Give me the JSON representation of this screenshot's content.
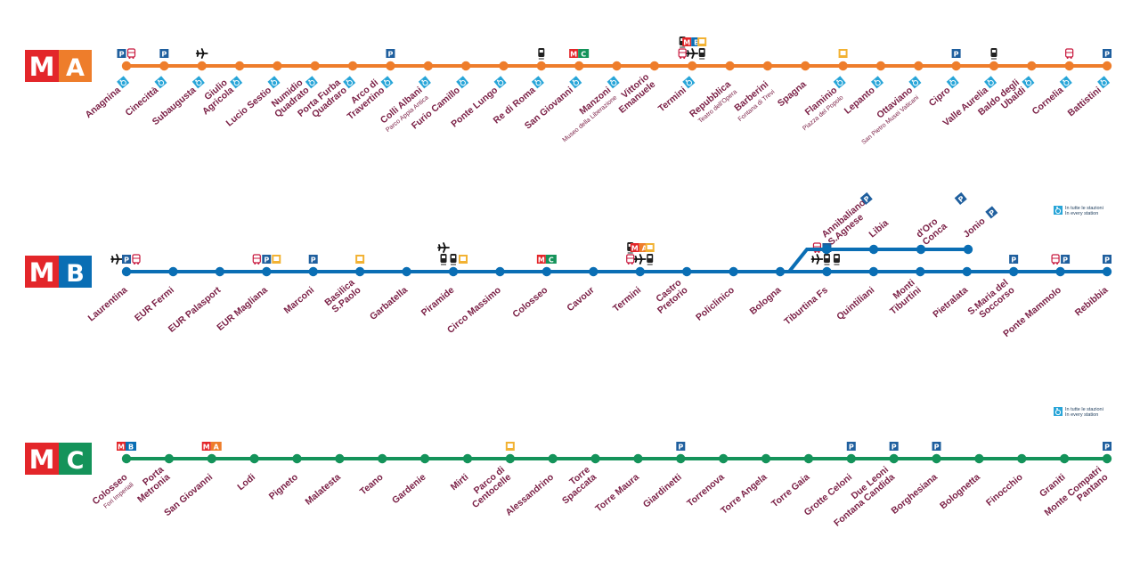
{
  "colors": {
    "line_a": "#ee7d2b",
    "line_b": "#0a6eb4",
    "line_c": "#14935a",
    "logo_m": "#e3262a",
    "station_text": "#7a1f45",
    "parking": "#1f5f9e",
    "access": "#28a5d8"
  },
  "accessibility_note": {
    "it": "In tutte le stazioni",
    "en": "In every station"
  },
  "lines": [
    {
      "id": "a",
      "logo_m": "M",
      "logo_letter": "A",
      "stations": [
        {
          "name": "Anagnina",
          "icons": [
            "parking-icon",
            "bus-icon"
          ],
          "access": true
        },
        {
          "name": "Cinecittà",
          "icons": [
            "parking-icon"
          ],
          "access": true
        },
        {
          "name": "Subaugusta",
          "icons": [
            "plane-icon"
          ],
          "access": true
        },
        {
          "name": "Giulio Agricola",
          "icons": [],
          "access": true
        },
        {
          "name": "Lucio Sestio",
          "icons": [],
          "access": true
        },
        {
          "name": "Numidio Quadrato",
          "icons": [],
          "access": true
        },
        {
          "name": "Porta Furba Quadraro",
          "icons": [],
          "access": true
        },
        {
          "name": "Arco di Travertino",
          "icons": [
            "parking-icon"
          ],
          "access": true
        },
        {
          "name": "Colli Albani",
          "sub": "Parco Appia Antica",
          "icons": [],
          "access": true
        },
        {
          "name": "Furio Camillo",
          "icons": [],
          "access": true
        },
        {
          "name": "Ponte Lungo",
          "icons": [],
          "access": true
        },
        {
          "name": "Re di Roma",
          "icons": [
            "train-icon"
          ],
          "access": true
        },
        {
          "name": "San Giovanni",
          "icons": [
            "line-c-badge"
          ],
          "access": true
        },
        {
          "name": "Manzoni",
          "sub": "Museo della Liberazione",
          "icons": [],
          "access": true
        },
        {
          "name": "Vittorio Emanuele",
          "icons": [],
          "access": false
        },
        {
          "name": "Termini",
          "icons": [
            "bus-icon",
            "plane-icon",
            "train-icon",
            "train-icon",
            "line-b-badge",
            "tram-icon"
          ],
          "access": true
        },
        {
          "name": "Repubblica",
          "sub": "Teatro dell'Opera",
          "icons": [],
          "access": false
        },
        {
          "name": "Barberini",
          "sub": "Fontana di Trevi",
          "icons": [],
          "access": false
        },
        {
          "name": "Spagna",
          "icons": [],
          "access": false
        },
        {
          "name": "Flaminio",
          "sub": "Piazza del Popolo",
          "icons": [
            "tram-icon"
          ],
          "access": true
        },
        {
          "name": "Lepanto",
          "icons": [],
          "access": true
        },
        {
          "name": "Ottaviano",
          "sub": "San Pietro Musei Vaticani",
          "icons": [],
          "access": true
        },
        {
          "name": "Cipro",
          "icons": [
            "parking-icon"
          ],
          "access": true
        },
        {
          "name": "Valle Aurelia",
          "icons": [
            "train-icon"
          ],
          "access": true
        },
        {
          "name": "Baldo degli Ubaldi",
          "icons": [],
          "access": true
        },
        {
          "name": "Cornelia",
          "icons": [
            "bus-icon"
          ],
          "access": true
        },
        {
          "name": "Battistini",
          "icons": [
            "parking-icon"
          ],
          "access": true
        }
      ]
    },
    {
      "id": "b",
      "logo_m": "M",
      "logo_letter": "B",
      "stations": [
        {
          "name": "Laurentina",
          "icons": [
            "plane-icon",
            "parking-icon",
            "bus-icon"
          ]
        },
        {
          "name": "EUR Fermi",
          "icons": []
        },
        {
          "name": "EUR Palasport",
          "icons": []
        },
        {
          "name": "EUR Magliana",
          "icons": [
            "bus-icon",
            "parking-icon",
            "tram-icon"
          ]
        },
        {
          "name": "Marconi",
          "icons": [
            "parking-icon"
          ]
        },
        {
          "name": "Basilica S.Paolo",
          "icons": [
            "tram-icon"
          ]
        },
        {
          "name": "Garbatella",
          "icons": []
        },
        {
          "name": "Piramide",
          "icons": [
            "train-icon",
            "train-icon",
            "tram-icon",
            "plane-icon"
          ]
        },
        {
          "name": "Circo Massimo",
          "icons": []
        },
        {
          "name": "Colosseo",
          "icons": [
            "line-c-badge"
          ]
        },
        {
          "name": "Cavour",
          "icons": []
        },
        {
          "name": "Termini",
          "icons": [
            "bus-icon",
            "plane-icon",
            "train-icon",
            "train-icon",
            "line-a-badge",
            "tram-icon"
          ]
        },
        {
          "name": "Castro Pretorio",
          "icons": []
        },
        {
          "name": "Policlinico",
          "icons": []
        },
        {
          "name": "Bologna",
          "icons": []
        },
        {
          "name": "Tiburtina Fs",
          "icons": [
            "plane-icon",
            "train-icon",
            "train-icon",
            "bus-icon",
            "parking-icon"
          ]
        },
        {
          "name": "Quintiliani",
          "icons": []
        },
        {
          "name": "Monti Tiburtini",
          "icons": []
        },
        {
          "name": "Pietralata",
          "icons": []
        },
        {
          "name": "S.Maria del Soccorso",
          "icons": [
            "parking-icon"
          ]
        },
        {
          "name": "Ponte Mammolo",
          "icons": [
            "bus-icon",
            "parking-icon"
          ]
        },
        {
          "name": "Rebibbia",
          "icons": [
            "parking-icon"
          ]
        }
      ],
      "branch_stations": [
        {
          "name": "S.Agnese Annibaliano",
          "icons": [
            "parking-icon"
          ]
        },
        {
          "name": "Libia",
          "icons": []
        },
        {
          "name": "Conca d'Oro",
          "icons": [
            "parking-icon"
          ]
        },
        {
          "name": "Jonio",
          "icons": [
            "parking-icon"
          ]
        }
      ]
    },
    {
      "id": "c",
      "logo_m": "M",
      "logo_letter": "C",
      "stations": [
        {
          "name": "Colosseo",
          "sub": "Fori Imperiali",
          "icons": [
            "line-b-badge"
          ]
        },
        {
          "name": "Porta Metronia",
          "icons": []
        },
        {
          "name": "San Giovanni",
          "icons": [
            "line-a-badge"
          ]
        },
        {
          "name": "Lodi",
          "icons": []
        },
        {
          "name": "Pigneto",
          "icons": []
        },
        {
          "name": "Malatesta",
          "icons": []
        },
        {
          "name": "Teano",
          "icons": []
        },
        {
          "name": "Gardenie",
          "icons": []
        },
        {
          "name": "Mirti",
          "icons": []
        },
        {
          "name": "Parco di Centocelle",
          "icons": [
            "tram-icon"
          ]
        },
        {
          "name": "Alessandrino",
          "icons": []
        },
        {
          "name": "Torre Spaccata",
          "icons": []
        },
        {
          "name": "Torre Maura",
          "icons": []
        },
        {
          "name": "Giardinetti",
          "icons": [
            "parking-icon"
          ]
        },
        {
          "name": "Torrenova",
          "icons": []
        },
        {
          "name": "Torre Angela",
          "icons": []
        },
        {
          "name": "Torre Gaia",
          "icons": []
        },
        {
          "name": "Grotte Celoni",
          "icons": [
            "parking-icon"
          ]
        },
        {
          "name": "Due Leoni Fontana Candida",
          "icons": [
            "parking-icon"
          ]
        },
        {
          "name": "Borghesiana",
          "icons": [
            "parking-icon"
          ]
        },
        {
          "name": "Bolognetta",
          "icons": []
        },
        {
          "name": "Finocchio",
          "icons": []
        },
        {
          "name": "Graniti",
          "icons": []
        },
        {
          "name": "Monte Compatri Pantano",
          "icons": [
            "parking-icon"
          ]
        }
      ]
    }
  ]
}
